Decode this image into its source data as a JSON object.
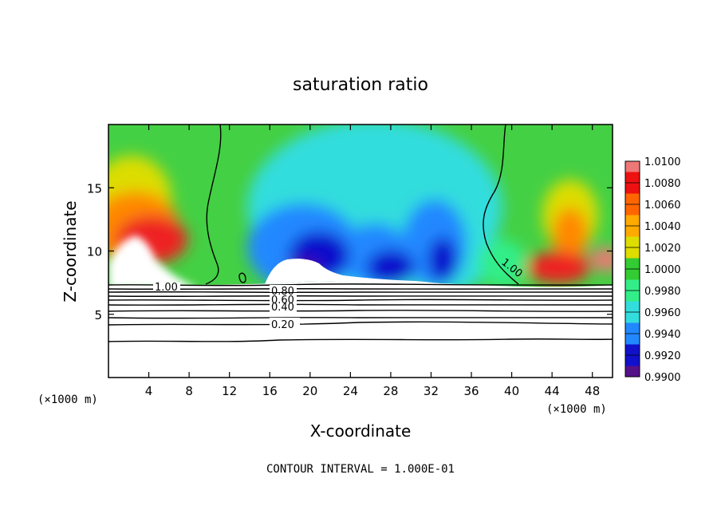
{
  "chart_data": {
    "type": "heatmap",
    "title": "saturation ratio",
    "xlabel": "X-coordinate",
    "ylabel": "Z-coordinate",
    "x_unit": "(×1000 m)",
    "z_unit": "(×1000 m)",
    "xlim": [
      0,
      50
    ],
    "ylim": [
      0,
      20
    ],
    "x_ticks": [
      "4",
      "8",
      "12",
      "16",
      "20",
      "24",
      "28",
      "32",
      "36",
      "40",
      "44",
      "48"
    ],
    "x_tick_values": [
      4,
      8,
      12,
      16,
      20,
      24,
      28,
      32,
      36,
      40,
      44,
      48
    ],
    "y_ticks": [
      "5",
      "10",
      "15"
    ],
    "y_tick_values": [
      5,
      10,
      15
    ],
    "colorbar": {
      "labels": [
        "1.0100",
        "1.0080",
        "1.0060",
        "1.0040",
        "1.0020",
        "1.0000",
        "0.9980",
        "0.9960",
        "0.9940",
        "0.9920",
        "0.9900"
      ],
      "values": [
        1.01,
        1.008,
        1.006,
        1.004,
        1.002,
        1.0,
        0.998,
        0.996,
        0.994,
        0.992,
        0.99
      ],
      "colors": [
        "#ee7777",
        "#ee1111",
        "#ff6600",
        "#ffaa00",
        "#dddd00",
        "#33cc33",
        "#33ee88",
        "#33dddd",
        "#2288ff",
        "#1111cc",
        "#551188"
      ]
    },
    "contour_labels": [
      "1.00",
      "1.00",
      "0.80",
      "0.60",
      "0.40",
      "0.20"
    ],
    "contour_interval_note": "CONTOUR INTERVAL = 1.000E-01"
  }
}
